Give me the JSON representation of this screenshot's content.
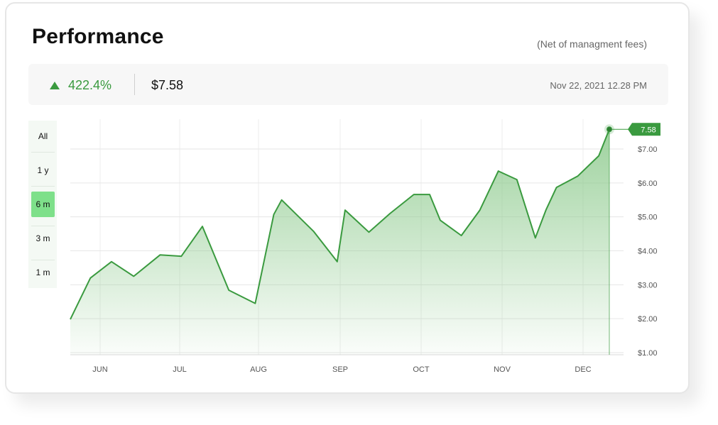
{
  "header": {
    "title": "Performance",
    "note": "(Net of managment fees)"
  },
  "stats": {
    "change_pct": "422.4%",
    "price": "$7.58",
    "timestamp": "Nov 22, 2021 12.28 PM",
    "change_icon": "triangle-up-icon"
  },
  "ranges": [
    {
      "label": "All",
      "active": false
    },
    {
      "label": "1 y",
      "active": false
    },
    {
      "label": "6 m",
      "active": true
    },
    {
      "label": "3 m",
      "active": false
    },
    {
      "label": "1 m",
      "active": false
    }
  ],
  "colors": {
    "accent": "#3a9a3f",
    "active_range": "#7ee08a",
    "fill_top": "#8dca8d"
  },
  "chart_data": {
    "type": "area",
    "xlabels": [
      "JUN",
      "JUL",
      "AUG",
      "SEP",
      "OCT",
      "NOV",
      "DEC"
    ],
    "ytick_labels": [
      "$1.00",
      "$2.00",
      "$3.00",
      "$4.00",
      "$5.00",
      "$6.00",
      "$7.00"
    ],
    "ylim": [
      1,
      7.4
    ],
    "grid": true,
    "current_label": "7.58",
    "series": [
      {
        "values": [
          1.98,
          3.2,
          3.68,
          3.25,
          3.88,
          3.84,
          4.72,
          2.84,
          2.45,
          5.07,
          5.5,
          4.58,
          3.68,
          5.2,
          4.55,
          5.1,
          5.66,
          5.66,
          4.9,
          4.45,
          5.2,
          6.35,
          6.1,
          4.38,
          5.2,
          5.87,
          6.2,
          6.8,
          7.58
        ],
        "x_index": [
          0,
          0.38,
          0.78,
          1.2,
          1.7,
          2.1,
          2.5,
          3.0,
          3.5,
          3.85,
          4.0,
          4.6,
          5.05,
          5.2,
          5.65,
          6.05,
          6.5,
          6.8,
          7.0,
          7.4,
          7.75,
          8.1,
          8.45,
          8.8,
          9.0,
          9.2,
          9.6,
          10.0,
          10.2
        ]
      }
    ]
  }
}
